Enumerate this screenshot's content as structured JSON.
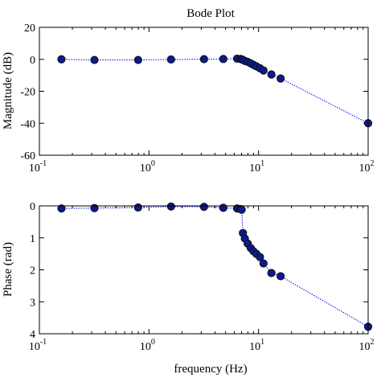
{
  "chart_data": [
    {
      "type": "line",
      "title": "Bode Plot",
      "xlabel": "",
      "ylabel": "Magnitude (dB)",
      "xscale": "log",
      "xlim": [
        0.1,
        100
      ],
      "ylim": [
        -60,
        20
      ],
      "y_reversed": false,
      "grid": false,
      "x_ticks": [
        {
          "base": "10",
          "exp": "-1",
          "value": 0.1
        },
        {
          "base": "10",
          "exp": "0",
          "value": 1
        },
        {
          "base": "10",
          "exp": "1",
          "value": 10
        },
        {
          "base": "10",
          "exp": "2",
          "value": 100
        }
      ],
      "y_ticks": [
        {
          "label": "20",
          "value": 20
        },
        {
          "label": "0",
          "value": 0
        },
        {
          "label": "-20",
          "value": -20
        },
        {
          "label": "-40",
          "value": -40
        },
        {
          "label": "-60",
          "value": -60
        }
      ],
      "series": [
        {
          "color": "#0000ff",
          "marker_color": "#0b1a8c",
          "line_style": "dotted",
          "points": [
            [
              0.159,
              0.0
            ],
            [
              0.318,
              -0.4
            ],
            [
              0.796,
              -0.4
            ],
            [
              1.59,
              -0.1
            ],
            [
              3.18,
              0.1
            ],
            [
              4.77,
              0.2
            ],
            [
              6.37,
              0.4
            ],
            [
              6.84,
              0.2
            ],
            [
              7.01,
              0.0
            ],
            [
              7.2,
              -0.4
            ],
            [
              7.5,
              -1.0
            ],
            [
              7.96,
              -1.6
            ],
            [
              8.5,
              -2.6
            ],
            [
              9.0,
              -3.5
            ],
            [
              9.55,
              -4.4
            ],
            [
              10.3,
              -5.6
            ],
            [
              11.1,
              -7.0
            ],
            [
              13.1,
              -9.5
            ],
            [
              15.9,
              -12.0
            ],
            [
              100,
              -40.0
            ]
          ]
        }
      ]
    },
    {
      "type": "line",
      "title": "",
      "xlabel": "frequency (Hz)",
      "ylabel": "Phase (rad)",
      "xscale": "log",
      "xlim": [
        0.1,
        100
      ],
      "ylim": [
        0,
        4
      ],
      "y_reversed": true,
      "grid": false,
      "x_ticks": [
        {
          "base": "10",
          "exp": "-1",
          "value": 0.1
        },
        {
          "base": "10",
          "exp": "0",
          "value": 1
        },
        {
          "base": "10",
          "exp": "1",
          "value": 10
        },
        {
          "base": "10",
          "exp": "2",
          "value": 100
        }
      ],
      "y_ticks": [
        {
          "label": "0",
          "value": 0
        },
        {
          "label": "1",
          "value": 1
        },
        {
          "label": "2",
          "value": 2
        },
        {
          "label": "3",
          "value": 3
        },
        {
          "label": "4",
          "value": 4
        }
      ],
      "series": [
        {
          "color": "#0000ff",
          "marker_color": "#0b1a8c",
          "line_style": "dotted",
          "points": [
            [
              0.159,
              0.08
            ],
            [
              0.318,
              0.07
            ],
            [
              0.796,
              0.05
            ],
            [
              1.59,
              0.02
            ],
            [
              3.18,
              0.03
            ],
            [
              4.77,
              0.06
            ],
            [
              6.37,
              0.08
            ],
            [
              6.84,
              0.1
            ],
            [
              7.01,
              0.12
            ],
            [
              7.2,
              0.85
            ],
            [
              7.5,
              1.02
            ],
            [
              7.96,
              1.18
            ],
            [
              8.5,
              1.32
            ],
            [
              9.0,
              1.42
            ],
            [
              9.55,
              1.5
            ],
            [
              10.3,
              1.6
            ],
            [
              11.1,
              1.8
            ],
            [
              13.1,
              2.1
            ],
            [
              15.9,
              2.2
            ],
            [
              100,
              3.78
            ]
          ]
        }
      ]
    }
  ]
}
